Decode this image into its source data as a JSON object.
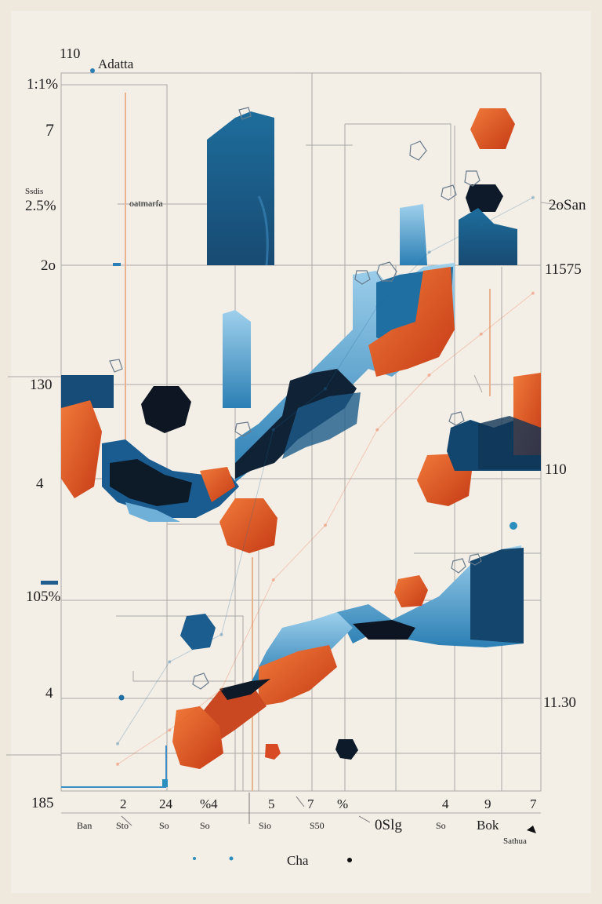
{
  "colors": {
    "paper": "#efe8dc",
    "blue": "#1f6d9c",
    "dark_blue": "#12344f",
    "light_blue": "#7fb8d8",
    "orange": "#ea5a24",
    "red": "#c73a1c",
    "black": "#0d0d12",
    "grid": "#8e8e8e"
  },
  "header": {
    "top_number": "110",
    "title": "Adatta"
  },
  "left_axis": {
    "l1": "1:1%",
    "l2": "7",
    "l3_small": "Ssdis",
    "l3": "2.5%",
    "l4": "2o",
    "l5": "130",
    "l6": "4",
    "l7": "105%",
    "l8": "4",
    "l9": "185"
  },
  "right_axis": {
    "r1": "2oSan",
    "r2": "11575",
    "r3": "110",
    "r4": "11.30"
  },
  "inner_labels": {
    "mid": "oatmarfa",
    "bottom_right": "Sathua"
  },
  "x_ticks_top": [
    "2",
    "24",
    "%4",
    "5",
    "7",
    "%",
    "4",
    "9",
    "7"
  ],
  "x_ticks_bottom": [
    "Ban",
    "Sto",
    "So",
    "Sio",
    "S50",
    "0Slg",
    "So",
    "Bok"
  ],
  "footer": {
    "label": "Cha"
  },
  "chart_data": {
    "type": "area",
    "title": "Adatta",
    "xlabel": "",
    "ylabel": "",
    "categories": [
      "2",
      "24",
      "%4",
      "5",
      "7",
      "%",
      "4",
      "9",
      "7"
    ],
    "series": [
      {
        "values": [
          6,
          18,
          22,
          52,
          58,
          70,
          78,
          82,
          86
        ]
      },
      {
        "values": [
          3,
          8,
          14,
          30,
          38,
          52,
          60,
          66,
          72
        ]
      }
    ]
  }
}
